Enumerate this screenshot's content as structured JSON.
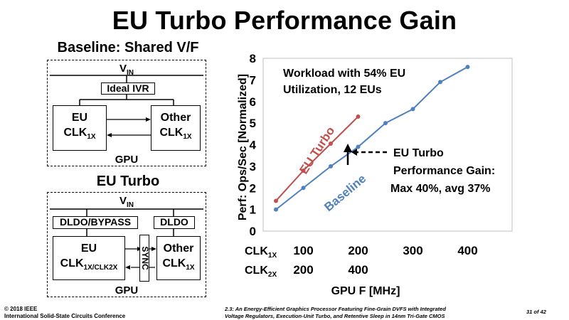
{
  "title": "EU Turbo Performance Gain",
  "baseline_diagram": {
    "heading": "Baseline: Shared V/F",
    "vin": "V",
    "vin_sub": "IN",
    "ivr": "Ideal IVR",
    "eu": "EU",
    "eu_clk": "CLK",
    "eu_clk_sub": "1X",
    "other": "Other",
    "other_clk": "CLK",
    "other_clk_sub": "1X",
    "gpu": "GPU"
  },
  "turbo_diagram": {
    "heading": "EU Turbo",
    "vin": "V",
    "vin_sub": "IN",
    "dldo_bypass": "DLDO/BYPASS",
    "dldo": "DLDO",
    "sync": "SYNC",
    "eu": "EU",
    "eu_clk": "CLK",
    "eu_clk_sub": "1X/CLK",
    "eu_clk_sub2": "2X",
    "other": "Other",
    "other_clk": "CLK",
    "other_clk_sub": "1X",
    "gpu": "GPU"
  },
  "chart_data": {
    "type": "line",
    "ylabel": "Perf: Ops/Sec [Normalized]",
    "xlabel": "GPU F [MHz]",
    "ylim": [
      0,
      8
    ],
    "yticks": [
      "0",
      "1",
      "2",
      "3",
      "4",
      "5",
      "6",
      "7",
      "8"
    ],
    "xlim": [
      50,
      450
    ],
    "annotation": {
      "line1": "Workload with 54% EU",
      "line2": "Utilization, 12 EUs"
    },
    "gain_text": {
      "line1": "EU Turbo",
      "line2": "Performance Gain:",
      "line3": "Max 40%, avg 37%"
    },
    "series": [
      {
        "name": "Baseline",
        "color": "#4f81bd",
        "x": [
          50,
          100,
          150,
          200,
          250,
          300,
          350,
          400
        ],
        "y": [
          1.0,
          2.0,
          3.0,
          3.9,
          5.0,
          5.65,
          6.9,
          7.6
        ]
      },
      {
        "name": "EU Turbo",
        "color": "#c0504d",
        "x": [
          50,
          100,
          150,
          200
        ],
        "y": [
          1.4,
          2.8,
          4.05,
          5.3
        ]
      }
    ],
    "x_rows": [
      {
        "label": "CLK",
        "label_sub": "1X",
        "ticks": [
          "100",
          "200",
          "300",
          "400"
        ]
      },
      {
        "label": "CLK",
        "label_sub": "2X",
        "ticks": [
          "200",
          "400"
        ]
      }
    ]
  },
  "footer": {
    "left1": "© 2018 IEEE",
    "left2": "International Solid-State Circuits Conference",
    "center1": "2.3: An Energy-Efficient Graphics Processor Featuring Fine-Grain DVFS with Integrated",
    "center2": "Voltage Regulators, Execution-Unit Turbo, and Retentive Sleep in 14nm Tri-Gate CMOS",
    "right": "31 of 42"
  }
}
